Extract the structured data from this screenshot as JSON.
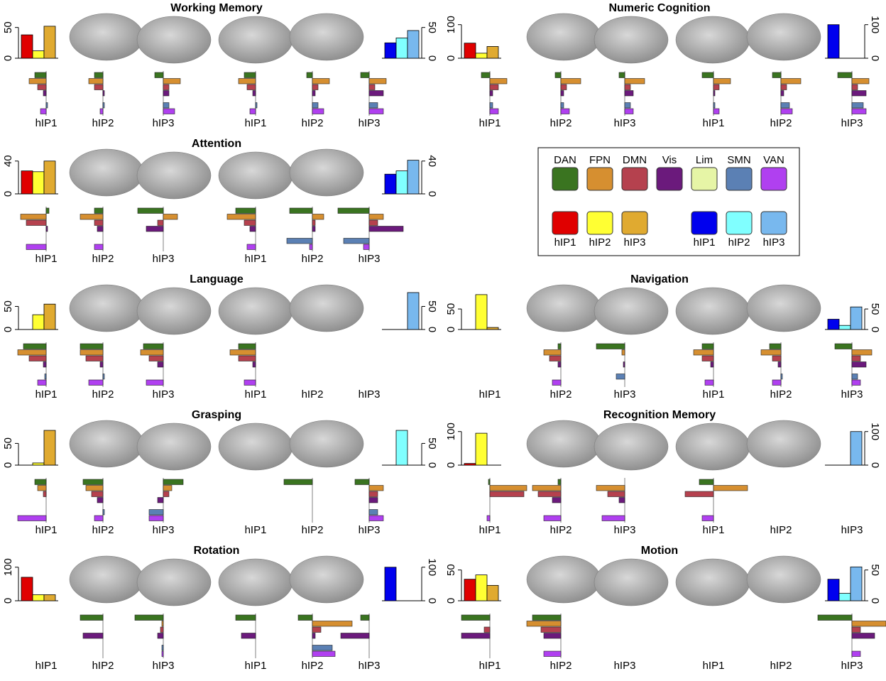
{
  "legend": {
    "networks": [
      {
        "name": "DAN",
        "color": "#3a7420"
      },
      {
        "name": "FPN",
        "color": "#d68f30"
      },
      {
        "name": "DMN",
        "color": "#b5414e"
      },
      {
        "name": "Vis",
        "color": "#6b1a7c"
      },
      {
        "name": "Lim",
        "color": "#e6f5a6"
      },
      {
        "name": "SMN",
        "color": "#5b80b4"
      },
      {
        "name": "VAN",
        "color": "#b040f0"
      }
    ],
    "left": [
      {
        "name": "hIP1",
        "color": "#e00000"
      },
      {
        "name": "hIP2",
        "color": "#ffff33"
      },
      {
        "name": "hIP3",
        "color": "#e0aa30"
      }
    ],
    "right": [
      {
        "name": "hIP1",
        "color": "#0000ee"
      },
      {
        "name": "hIP2",
        "color": "#80ffff"
      },
      {
        "name": "hIP3",
        "color": "#78b8ee"
      }
    ]
  },
  "panels": [
    {
      "title": "Working Memory",
      "left": {
        "ylim": [
          0,
          60
        ],
        "yticks": [
          0,
          50
        ],
        "values": [
          38,
          12,
          52
        ]
      },
      "right": {
        "ylim": [
          0,
          60
        ],
        "yticks": [
          0,
          50
        ],
        "values": [
          25,
          33,
          45
        ]
      },
      "profiles": [
        {
          "label": "hIP1",
          "values": [
            -0.4,
            -0.6,
            -0.3,
            -0.1,
            null,
            0.05,
            -0.2
          ]
        },
        {
          "label": "hIP2",
          "values": [
            -0.3,
            -0.5,
            -0.3,
            0.05,
            null,
            0.05,
            -0.1
          ]
        },
        {
          "label": "hIP3",
          "values": [
            -0.3,
            0.6,
            0.2,
            0.2,
            null,
            0.2,
            0.4
          ]
        },
        {
          "label": "hIP1",
          "values": [
            -0.4,
            -0.6,
            -0.3,
            -0.1,
            null,
            0.05,
            -0.2
          ]
        },
        {
          "label": "hIP2",
          "values": [
            -0.2,
            0.6,
            0.2,
            0.1,
            null,
            0.2,
            0.4
          ]
        },
        {
          "label": "hIP3",
          "values": [
            -0.3,
            0.6,
            0.2,
            0.5,
            null,
            0.3,
            0.5
          ]
        }
      ]
    },
    {
      "title": "Numeric Cognition",
      "left": {
        "ylim": [
          0,
          110
        ],
        "yticks": [
          0,
          100
        ],
        "values": [
          45,
          15,
          35
        ]
      },
      "right": {
        "ylim": [
          0,
          110
        ],
        "yticks": [
          0,
          100
        ],
        "values": [
          100,
          0,
          0
        ]
      },
      "profiles": [
        {
          "label": "hIP1",
          "values": [
            -0.3,
            0.6,
            0.3,
            0.1,
            null,
            0.1,
            0.3
          ]
        },
        {
          "label": "hIP2",
          "values": [
            -0.2,
            0.7,
            0.2,
            0.1,
            null,
            0.1,
            0.3
          ]
        },
        {
          "label": "hIP3",
          "values": [
            -0.2,
            0.7,
            0.2,
            0.3,
            null,
            0.2,
            0.3
          ]
        },
        {
          "label": "hIP1",
          "values": [
            -0.4,
            0.6,
            0.2,
            0.05,
            null,
            0.05,
            0.2
          ]
        },
        {
          "label": "hIP2",
          "values": [
            -0.3,
            0.7,
            0.2,
            0.1,
            null,
            0.3,
            0.4
          ]
        },
        {
          "label": "hIP3",
          "values": [
            -0.5,
            0.6,
            0.2,
            0.5,
            null,
            0.4,
            0.5
          ]
        }
      ]
    },
    {
      "title": "Attention",
      "left": {
        "ylim": [
          0,
          45
        ],
        "yticks": [
          0,
          40
        ],
        "values": [
          28,
          27,
          40
        ]
      },
      "right": {
        "ylim": [
          0,
          45
        ],
        "yticks": [
          0,
          40
        ],
        "values": [
          24,
          28,
          41
        ]
      },
      "profiles": [
        {
          "label": "hIP1",
          "values": [
            0.1,
            -0.9,
            -0.7,
            0.05,
            null,
            null,
            -0.7
          ]
        },
        {
          "label": "hIP2",
          "values": [
            -0.3,
            -0.8,
            -0.3,
            -0.2,
            null,
            null,
            -0.3
          ]
        },
        {
          "label": "hIP3",
          "values": [
            -0.9,
            0.5,
            -0.2,
            -0.6,
            null,
            null,
            null
          ]
        },
        {
          "label": "hIP1",
          "values": [
            -0.7,
            -1,
            -0.4,
            -0.2,
            null,
            null,
            -0.3
          ]
        },
        {
          "label": "hIP2",
          "values": [
            -0.8,
            0.4,
            0.1,
            0.1,
            null,
            -0.9,
            -0.1
          ]
        },
        {
          "label": "hIP3",
          "values": [
            -1.1,
            0.5,
            0.3,
            1.2,
            null,
            -0.9,
            -0.2
          ]
        }
      ]
    },
    {
      "title": "Language",
      "left": {
        "ylim": [
          0,
          80
        ],
        "yticks": [
          0,
          50
        ],
        "values": [
          0,
          32,
          55
        ]
      },
      "right": {
        "ylim": [
          0,
          80
        ],
        "yticks": [
          0,
          50
        ],
        "values": [
          0,
          0,
          80
        ]
      },
      "profiles": [
        {
          "label": "hIP1",
          "values": [
            -0.8,
            -1.0,
            -0.6,
            -0.1,
            null,
            -0.05,
            -0.3
          ]
        },
        {
          "label": "hIP2",
          "values": [
            -0.8,
            -0.8,
            -0.6,
            -0.1,
            null,
            0.05,
            -0.5
          ]
        },
        {
          "label": "hIP3",
          "values": [
            -0.7,
            -0.8,
            -0.5,
            -0.2,
            null,
            null,
            -0.6
          ]
        },
        {
          "label": "hIP1",
          "values": [
            -0.6,
            -0.9,
            -0.6,
            -0.1,
            null,
            null,
            -0.4
          ]
        },
        {
          "label": "hIP2",
          "values": [
            null,
            null,
            null,
            null,
            null,
            null,
            null
          ]
        },
        {
          "label": "hIP3",
          "values": [
            null,
            null,
            null,
            null,
            null,
            null,
            null
          ]
        }
      ]
    },
    {
      "title": "Navigation",
      "left": {
        "ylim": [
          0,
          90
        ],
        "yticks": [
          0,
          50
        ],
        "values": [
          0,
          85,
          5
        ]
      },
      "right": {
        "ylim": [
          0,
          90
        ],
        "yticks": [
          0,
          50
        ],
        "values": [
          25,
          10,
          55
        ]
      },
      "profiles": [
        {
          "label": "hIP1",
          "values": [
            null,
            null,
            null,
            null,
            null,
            null,
            null
          ]
        },
        {
          "label": "hIP2",
          "values": [
            -0.1,
            -0.6,
            -0.4,
            -0.1,
            null,
            null,
            -0.3
          ]
        },
        {
          "label": "hIP3",
          "values": [
            -1.0,
            -0.1,
            null,
            -0.05,
            null,
            -0.3,
            null
          ]
        },
        {
          "label": "hIP1",
          "values": [
            -0.4,
            -0.7,
            -0.4,
            -0.1,
            null,
            null,
            -0.3
          ]
        },
        {
          "label": "hIP2",
          "values": [
            -0.4,
            -0.7,
            -0.3,
            -0.1,
            null,
            0.05,
            -0.3
          ]
        },
        {
          "label": "hIP3",
          "values": [
            -0.6,
            0.7,
            0.3,
            0.5,
            null,
            0.2,
            0.3
          ]
        }
      ]
    },
    {
      "title": "Grasping",
      "left": {
        "ylim": [
          0,
          85
        ],
        "yticks": [
          0,
          50
        ],
        "values": [
          0,
          5,
          80
        ]
      },
      "right": {
        "ylim": [
          0,
          85
        ],
        "yticks": [
          0,
          50
        ],
        "values": [
          0,
          80,
          0
        ]
      },
      "profiles": [
        {
          "label": "hIP1",
          "values": [
            -0.4,
            -0.3,
            -0.1,
            null,
            null,
            null,
            -1.0
          ]
        },
        {
          "label": "hIP2",
          "values": [
            -0.7,
            -0.6,
            -0.4,
            -0.2,
            null,
            0.05,
            -0.3
          ]
        },
        {
          "label": "hIP3",
          "values": [
            0.7,
            0.3,
            0.2,
            -0.2,
            null,
            -0.5,
            -0.5
          ]
        },
        {
          "label": "hIP1",
          "values": [
            null,
            null,
            null,
            null,
            null,
            null,
            null
          ]
        },
        {
          "label": "hIP2",
          "values": [
            -1.0,
            null,
            null,
            null,
            null,
            null,
            null
          ]
        },
        {
          "label": "hIP3",
          "values": [
            -0.5,
            0.5,
            0.3,
            0.3,
            null,
            0.3,
            0.5
          ]
        }
      ]
    },
    {
      "title": "Recognition Memory",
      "left": {
        "ylim": [
          0,
          110
        ],
        "yticks": [
          0,
          100
        ],
        "values": [
          5,
          95,
          0
        ]
      },
      "right": {
        "ylim": [
          0,
          110
        ],
        "yticks": [
          0,
          100
        ],
        "values": [
          0,
          0,
          100
        ]
      },
      "profiles": [
        {
          "label": "hIP1",
          "values": [
            -0.05,
            1.3,
            1.2,
            null,
            null,
            null,
            -0.1
          ]
        },
        {
          "label": "hIP2",
          "values": [
            -0.1,
            -1.0,
            -0.8,
            -0.3,
            null,
            null,
            -0.6
          ]
        },
        {
          "label": "hIP3",
          "values": [
            null,
            -1.0,
            -0.6,
            -0.2,
            null,
            null,
            -0.8
          ]
        },
        {
          "label": "hIP1",
          "values": [
            -0.5,
            1.2,
            -1.0,
            null,
            null,
            null,
            -0.4
          ]
        },
        {
          "label": "hIP2",
          "values": [
            null,
            null,
            null,
            null,
            null,
            null,
            null
          ]
        },
        {
          "label": "hIP3",
          "values": [
            null,
            null,
            null,
            null,
            null,
            null,
            null
          ]
        }
      ]
    },
    {
      "title": "Rotation",
      "left": {
        "ylim": [
          0,
          110
        ],
        "yticks": [
          0,
          100
        ],
        "values": [
          70,
          18,
          18
        ]
      },
      "right": {
        "ylim": [
          0,
          110
        ],
        "yticks": [
          0,
          100
        ],
        "values": [
          100,
          0,
          0
        ]
      },
      "profiles": [
        {
          "label": "hIP1",
          "values": [
            null,
            null,
            null,
            null,
            null,
            null,
            null
          ]
        },
        {
          "label": "hIP2",
          "values": [
            -0.8,
            null,
            null,
            -0.7,
            null,
            null,
            null
          ]
        },
        {
          "label": "hIP3",
          "values": [
            -1.0,
            -0.05,
            -0.1,
            -0.2,
            null,
            -0.05,
            -0.05
          ]
        },
        {
          "label": "hIP1",
          "values": [
            -0.7,
            null,
            null,
            -0.5,
            null,
            null,
            null
          ]
        },
        {
          "label": "hIP2",
          "values": [
            -0.5,
            1.4,
            0.3,
            0.1,
            null,
            0.7,
            0.8
          ]
        },
        {
          "label": "hIP3",
          "values": [
            -0.3,
            null,
            null,
            -1.0,
            null,
            null,
            null
          ]
        }
      ]
    },
    {
      "title": "Motion",
      "left": {
        "ylim": [
          0,
          60
        ],
        "yticks": [
          0,
          50
        ],
        "values": [
          35,
          42,
          25
        ]
      },
      "right": {
        "ylim": [
          0,
          60
        ],
        "yticks": [
          0,
          50
        ],
        "values": [
          35,
          12,
          55
        ]
      },
      "profiles": [
        {
          "label": "hIP1",
          "values": [
            -1.0,
            null,
            -0.2,
            -1.0,
            null,
            null,
            null
          ]
        },
        {
          "label": "hIP2",
          "values": [
            -1.0,
            -1.2,
            -0.7,
            -0.6,
            null,
            null,
            -0.6
          ]
        },
        {
          "label": "hIP3",
          "values": [
            null,
            null,
            null,
            null,
            null,
            null,
            null
          ]
        },
        {
          "label": "hIP1",
          "values": [
            null,
            null,
            null,
            null,
            null,
            null,
            null
          ]
        },
        {
          "label": "hIP2",
          "values": [
            null,
            null,
            null,
            null,
            null,
            null,
            null
          ]
        },
        {
          "label": "hIP3",
          "values": [
            -1.2,
            1.2,
            0.3,
            0.8,
            null,
            null,
            0.3
          ]
        }
      ]
    }
  ]
}
